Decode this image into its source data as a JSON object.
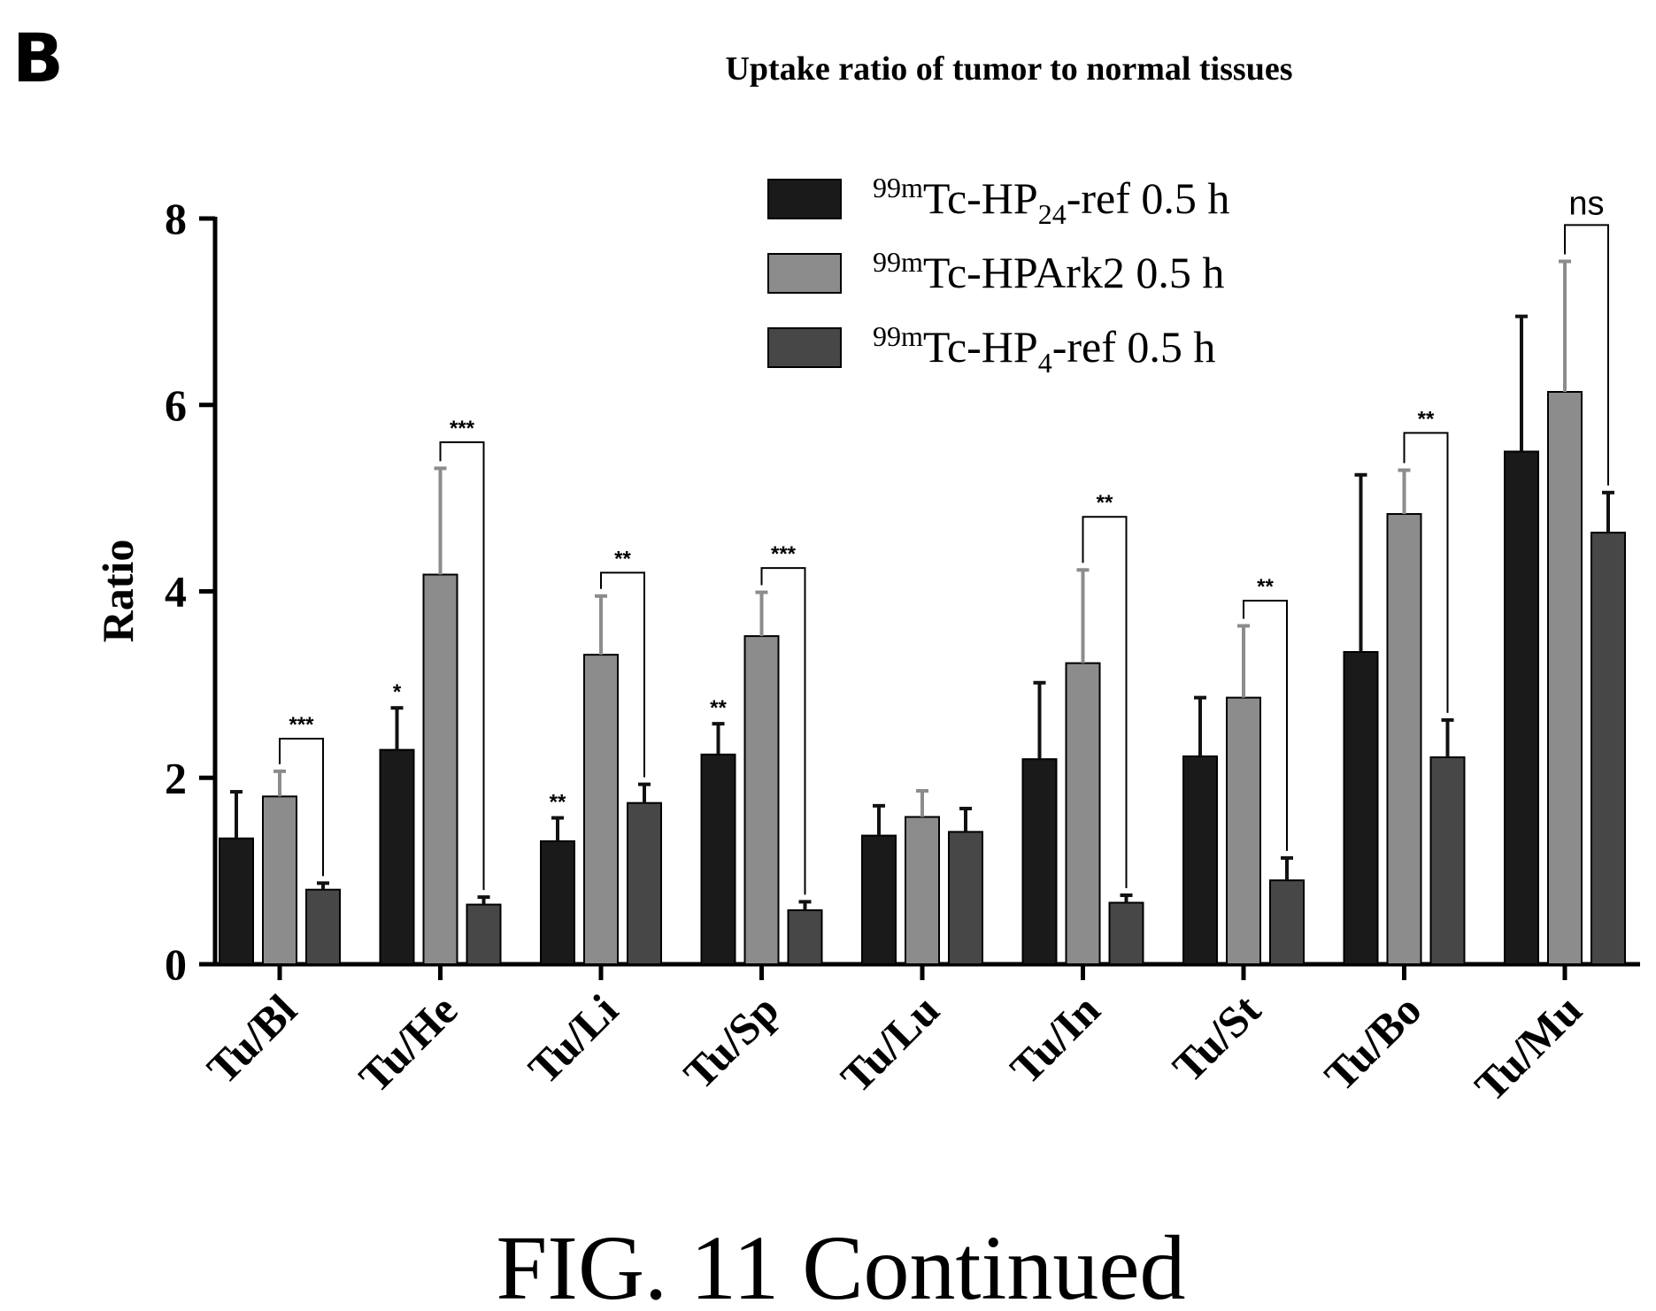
{
  "panel_label": "B",
  "caption": "FIG. 11 Continued",
  "chart_data": {
    "type": "bar",
    "title": "Uptake ratio of tumor to normal tissues",
    "ylabel": "Ratio",
    "xlabel": "",
    "ylim": [
      0,
      8
    ],
    "yticks": [
      0,
      2,
      4,
      6,
      8
    ],
    "grid": false,
    "legend_position": "top-right",
    "categories": [
      "Tu/Bl",
      "Tu/He",
      "Tu/Li",
      "Tu/Sp",
      "Tu/Lu",
      "Tu/In",
      "Tu/St",
      "Tu/Bo",
      "Tu/Mu"
    ],
    "series": [
      {
        "legend": {
          "sup": "99m",
          "pre": "Tc-HP",
          "sub": "24",
          "post": "-ref 0.5 h"
        },
        "color": "#1a1a1a",
        "values": [
          1.35,
          2.3,
          1.32,
          2.25,
          1.38,
          2.2,
          2.23,
          3.35,
          5.5
        ],
        "errors": [
          0.5,
          0.45,
          0.25,
          0.33,
          0.32,
          0.82,
          0.63,
          1.9,
          1.45
        ]
      },
      {
        "legend": {
          "sup": "99m",
          "pre": "Tc-HPArk2 0.5 h",
          "sub": "",
          "post": ""
        },
        "color": "#8c8c8c",
        "values": [
          1.8,
          4.18,
          3.32,
          3.52,
          1.58,
          3.23,
          2.86,
          4.83,
          6.14
        ],
        "errors": [
          0.27,
          1.14,
          0.63,
          0.47,
          0.28,
          1.0,
          0.77,
          0.47,
          1.4
        ]
      },
      {
        "legend": {
          "sup": "99m",
          "pre": "Tc-HP",
          "sub": "4",
          "post": "-ref 0.5 h"
        },
        "color": "#474747",
        "values": [
          0.8,
          0.64,
          1.73,
          0.58,
          1.42,
          0.66,
          0.9,
          2.22,
          4.63
        ],
        "errors": [
          0.07,
          0.08,
          0.2,
          0.09,
          0.25,
          0.08,
          0.24,
          0.4,
          0.43
        ]
      }
    ],
    "annotations": [
      {
        "text": "***",
        "category": "Tu/Bl",
        "type": "bracket",
        "from": 1,
        "to": 2,
        "level": 2.42
      },
      {
        "text": "*",
        "category": "Tu/He",
        "type": "above",
        "series": 0
      },
      {
        "text": "***",
        "category": "Tu/He",
        "type": "bracket",
        "from": 1,
        "to": 2,
        "level": 5.6
      },
      {
        "text": "**",
        "category": "Tu/Li",
        "type": "above",
        "series": 0
      },
      {
        "text": "**",
        "category": "Tu/Li",
        "type": "bracket",
        "from": 1,
        "to": 2,
        "level": 4.2
      },
      {
        "text": "**",
        "category": "Tu/Sp",
        "type": "above",
        "series": 0
      },
      {
        "text": "***",
        "category": "Tu/Sp",
        "type": "bracket",
        "from": 1,
        "to": 2,
        "level": 4.25
      },
      {
        "text": "**",
        "category": "Tu/In",
        "type": "bracket",
        "from": 1,
        "to": 2,
        "level": 4.8
      },
      {
        "text": "**",
        "category": "Tu/St",
        "type": "bracket",
        "from": 1,
        "to": 2,
        "level": 3.9
      },
      {
        "text": "**",
        "category": "Tu/Bo",
        "type": "bracket",
        "from": 1,
        "to": 2,
        "level": 5.7
      },
      {
        "text": "ns",
        "category": "Tu/Mu",
        "type": "bracket",
        "from": 1,
        "to": 2,
        "level": 7.93
      }
    ]
  }
}
